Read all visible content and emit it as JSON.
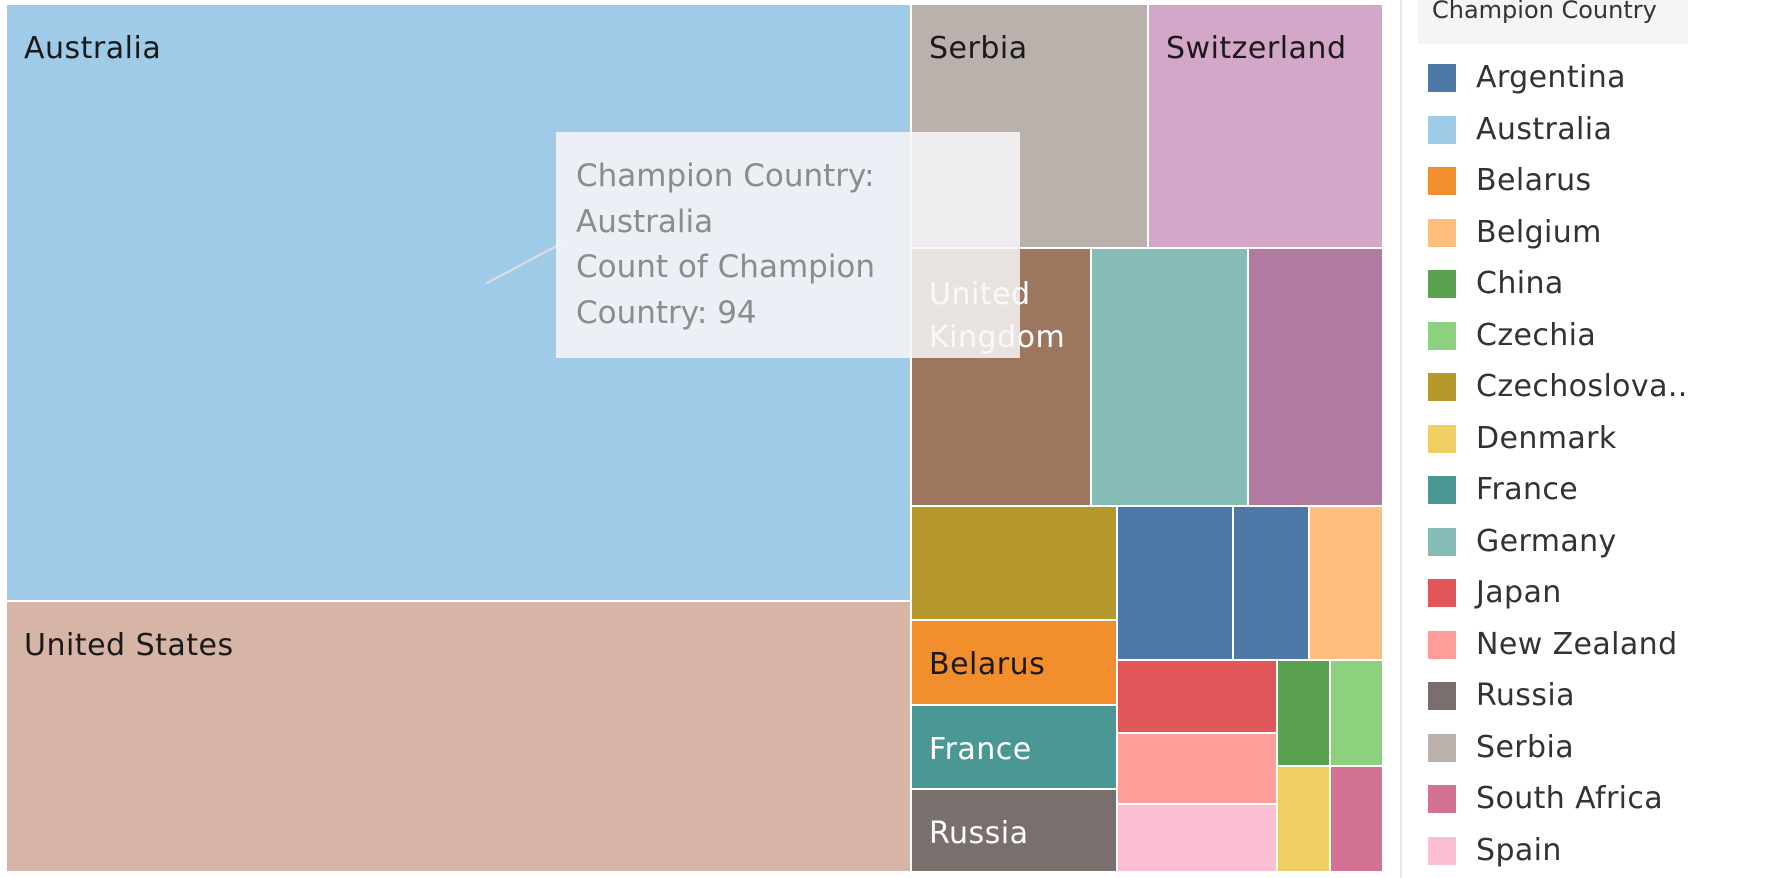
{
  "chart_data": {
    "type": "treemap",
    "legend": {
      "title": "Champion Country",
      "placement": "right",
      "items": [
        {
          "label": "Argentina",
          "color": "#4e79a7"
        },
        {
          "label": "Australia",
          "color": "#a0cbe8"
        },
        {
          "label": "Belarus",
          "color": "#f28e2b"
        },
        {
          "label": "Belgium",
          "color": "#ffbe7d"
        },
        {
          "label": "China",
          "color": "#59a14f"
        },
        {
          "label": "Czechia",
          "color": "#8cd17d"
        },
        {
          "label": "Czechoslova..",
          "color": "#b6992d"
        },
        {
          "label": "Denmark",
          "color": "#f1ce63"
        },
        {
          "label": "France",
          "color": "#499894"
        },
        {
          "label": "Germany",
          "color": "#86bcb6"
        },
        {
          "label": "Japan",
          "color": "#e15759"
        },
        {
          "label": "New Zealand",
          "color": "#ff9d9a"
        },
        {
          "label": "Russia",
          "color": "#79706e"
        },
        {
          "label": "Serbia",
          "color": "#bab0ac"
        },
        {
          "label": "South Africa",
          "color": "#d37295"
        },
        {
          "label": "Spain",
          "color": "#fabfd2"
        }
      ]
    },
    "tiles": [
      {
        "country": "Australia",
        "label": "Australia",
        "color": "#a0cbe8",
        "textColor": "#1a1a1a",
        "count": 94
      },
      {
        "country": "United States",
        "label": "United States",
        "color": "#d7b5a6",
        "textColor": "#1a1a1a"
      },
      {
        "country": "Serbia",
        "label": "Serbia",
        "color": "#bab0ac",
        "textColor": "#1a1a1a"
      },
      {
        "country": "Switzerland",
        "label": "Switzerland",
        "color": "#d4a6c8",
        "textColor": "#1a1a1a"
      },
      {
        "country": "United Kingdom",
        "label": "United Kingdom",
        "color": "#9d7660",
        "textColor": "#ffffff"
      },
      {
        "country": "Germany",
        "label": "",
        "color": "#86bcb6",
        "textColor": "#ffffff"
      },
      {
        "country": "",
        "label": "",
        "color": "#b07aa1",
        "textColor": "#ffffff"
      },
      {
        "country": "Czechoslova..",
        "label": "",
        "color": "#b6992d",
        "textColor": "#ffffff"
      },
      {
        "country": "Belarus",
        "label": "Belarus",
        "color": "#f28e2b",
        "textColor": "#1a1a1a"
      },
      {
        "country": "France",
        "label": "France",
        "color": "#499894",
        "textColor": "#ffffff"
      },
      {
        "country": "Russia",
        "label": "Russia",
        "color": "#79706e",
        "textColor": "#ffffff"
      },
      {
        "country": "Argentina",
        "label": "",
        "color": "#4e79a7",
        "textColor": "#ffffff"
      },
      {
        "country": "Argentina",
        "label": "",
        "color": "#4e79a7",
        "textColor": "#ffffff"
      },
      {
        "country": "Belgium",
        "label": "",
        "color": "#ffbe7d",
        "textColor": "#ffffff"
      },
      {
        "country": "Japan",
        "label": "",
        "color": "#e15759",
        "textColor": "#ffffff"
      },
      {
        "country": "New Zealand",
        "label": "",
        "color": "#ff9d9a",
        "textColor": "#ffffff"
      },
      {
        "country": "Spain",
        "label": "",
        "color": "#fabfd2",
        "textColor": "#ffffff"
      },
      {
        "country": "China",
        "label": "",
        "color": "#59a14f",
        "textColor": "#ffffff"
      },
      {
        "country": "Czechia",
        "label": "",
        "color": "#8cd17d",
        "textColor": "#ffffff"
      },
      {
        "country": "Denmark",
        "label": "",
        "color": "#f1ce63",
        "textColor": "#ffffff"
      },
      {
        "country": "South Africa",
        "label": "",
        "color": "#d37295",
        "textColor": "#ffffff"
      }
    ],
    "tooltip": {
      "line1": "Champion Country:",
      "line2": "Australia",
      "line3": "Count of Champion",
      "line4": "Country: 94"
    }
  }
}
